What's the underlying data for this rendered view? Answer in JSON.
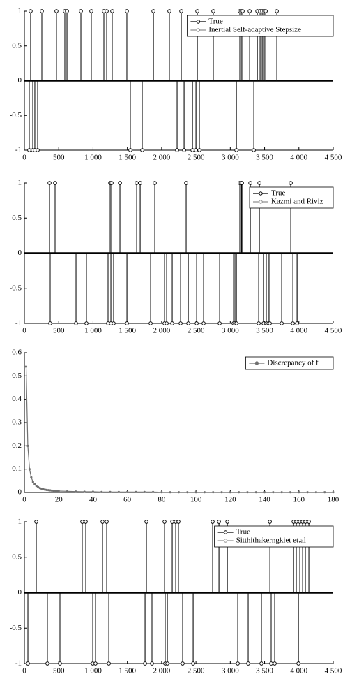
{
  "chart_data": [
    {
      "type": "stem",
      "legend": "upper right",
      "x": [
        91,
        254,
        467,
        589,
        620,
        823,
        975,
        1158,
        1199,
        1280,
        1493,
        1880,
        2113,
        2286,
        2520,
        2753,
        3139,
        3160,
        3180,
        3282,
        3394,
        3434,
        3465,
        3495,
        3516,
        3678,
        71,
        122,
        152,
        193,
        1544,
        1717,
        2225,
        2327,
        2449,
        2500,
        2550,
        3089,
        3343
      ],
      "series": [
        {
          "name": "True",
          "color": "#000000",
          "values": [
            1,
            1,
            1,
            1,
            1,
            1,
            1,
            1,
            1,
            1,
            1,
            1,
            1,
            1,
            1,
            1,
            1,
            1,
            1,
            1,
            1,
            1,
            1,
            1,
            1,
            1,
            -1,
            -1,
            -1,
            -1,
            -1,
            -1,
            -1,
            -1,
            -1,
            -1,
            -1,
            -1,
            -1
          ]
        },
        {
          "name": "Inertial Self-adaptive Stepsize",
          "color": "#909090",
          "values": [
            1,
            1,
            1,
            1,
            1,
            1,
            1,
            1,
            1,
            1,
            1,
            1,
            1,
            1,
            1,
            1,
            1,
            1,
            1,
            1,
            1,
            1,
            1,
            1,
            1,
            1,
            -1,
            -1,
            -1,
            -1,
            -1,
            -1,
            -1,
            -1,
            -1,
            -1,
            -1,
            -1,
            -1
          ]
        }
      ],
      "xlim": [
        0,
        4500
      ],
      "xticks": [
        0,
        500,
        {
          "value": 1000,
          "label": "1 000"
        },
        {
          "value": 1500,
          "label": "1 500"
        },
        {
          "value": 2000,
          "label": "2 000"
        },
        {
          "value": 2500,
          "label": "2 500"
        },
        {
          "value": 3000,
          "label": "3 000"
        },
        {
          "value": 3500,
          "label": "3 500"
        },
        {
          "value": 4000,
          "label": "4 000"
        },
        {
          "value": 4500,
          "label": "4 500"
        }
      ],
      "ylim": [
        -1,
        1
      ],
      "yticks": [
        -1,
        -0.5,
        0,
        0.5,
        1
      ]
    },
    {
      "type": "stem",
      "legend": "upper right",
      "x": [
        366,
        447,
        1250,
        1270,
        1392,
        1636,
        1687,
        1900,
        2357,
        3139,
        3160,
        3170,
        3292,
        3424,
        3881,
        376,
        752,
        904,
        1219,
        1260,
        1300,
        1494,
        1839,
        2042,
        2073,
        2154,
        2276,
        2388,
        2510,
        2611,
        2845,
        3048,
        3068,
        3089,
        3414,
        3485,
        3525,
        3556,
        3576,
        3749,
        3912,
        3973
      ],
      "series": [
        {
          "name": "True",
          "color": "#000000",
          "values": [
            1,
            1,
            1,
            1,
            1,
            1,
            1,
            1,
            1,
            1,
            1,
            1,
            1,
            1,
            1,
            -1,
            -1,
            -1,
            -1,
            -1,
            -1,
            -1,
            -1,
            -1,
            -1,
            -1,
            -1,
            -1,
            -1,
            -1,
            -1,
            -1,
            -1,
            -1,
            -1,
            -1,
            -1,
            -1,
            -1,
            -1,
            -1,
            -1
          ]
        },
        {
          "name": "Kazmi and Riviz",
          "color": "#909090",
          "values": [
            1,
            1,
            1,
            1,
            1,
            1,
            1,
            1,
            1,
            1,
            1,
            1,
            1,
            1,
            1,
            -1,
            -1,
            -1,
            -1,
            -1,
            -1,
            -1,
            -1,
            -1,
            -1,
            -1,
            -1,
            -1,
            -1,
            -1,
            -1,
            -1,
            -1,
            -1,
            -1,
            -1,
            -1,
            -1,
            -1,
            -1,
            -1,
            -1
          ]
        }
      ],
      "xlim": [
        0,
        4500
      ],
      "xticks": [
        0,
        500,
        {
          "value": 1000,
          "label": "1 000"
        },
        {
          "value": 1500,
          "label": "1 500"
        },
        {
          "value": 2000,
          "label": "2 000"
        },
        {
          "value": 2500,
          "label": "2 500"
        },
        {
          "value": 3000,
          "label": "3 000"
        },
        {
          "value": 3500,
          "label": "3 500"
        },
        {
          "value": 4000,
          "label": "4 000"
        },
        {
          "value": 4500,
          "label": "4 500"
        }
      ],
      "ylim": [
        -1,
        1
      ],
      "yticks": [
        -1,
        -0.5,
        0,
        0.5,
        1
      ]
    },
    {
      "type": "line",
      "legend": "upper right",
      "x": [
        1,
        2,
        3,
        4,
        5,
        6,
        7,
        8,
        9,
        10,
        11,
        12,
        13,
        14,
        15,
        16,
        17,
        18,
        19,
        20,
        25,
        30,
        35,
        40,
        45,
        50,
        55,
        60,
        65,
        70,
        75,
        80,
        85,
        90,
        95,
        100,
        105,
        110,
        115,
        120,
        125,
        130,
        135,
        140,
        145,
        150,
        155,
        160,
        165,
        170,
        175,
        180
      ],
      "series": [
        {
          "name": "Discrepancy of f",
          "color": "#707070",
          "values": [
            0.54,
            0.2,
            0.1,
            0.065,
            0.045,
            0.035,
            0.028,
            0.023,
            0.019,
            0.016,
            0.014,
            0.012,
            0.011,
            0.01,
            0.009,
            0.008,
            0.007,
            0.007,
            0.006,
            0.006,
            0.005,
            0.004,
            0.003,
            0.003,
            0.002,
            0.002,
            0.002,
            0.002,
            0.002,
            0.002,
            0.002,
            0.001,
            0.001,
            0.001,
            0.001,
            0.001,
            0.001,
            0.001,
            0.001,
            0.001,
            0.001,
            0.001,
            0.001,
            0.001,
            0.001,
            0.001,
            0.001,
            0.001,
            0.001,
            0.001,
            0.001,
            0.001
          ]
        }
      ],
      "xlim": [
        0,
        180
      ],
      "xticks": [
        0,
        20,
        40,
        60,
        80,
        100,
        120,
        140,
        160,
        180
      ],
      "ylim": [
        0,
        0.6
      ],
      "yticks": [
        0,
        0.1,
        0.2,
        0.3,
        0.4,
        0.5,
        0.6
      ]
    },
    {
      "type": "stem",
      "legend": "upper right",
      "x": [
        173,
        843,
        894,
        1138,
        1199,
        1778,
        2042,
        2154,
        2205,
        2245,
        2743,
        2835,
        2957,
        3577,
        3922,
        3962,
        4013,
        4054,
        4094,
        4145,
        51,
        335,
        518,
        996,
        1036,
        1230,
        1758,
        1859,
        2052,
        2083,
        2306,
        2459,
        3109,
        3261,
        3454,
        3596,
        3647,
        3993
      ],
      "series": [
        {
          "name": "True",
          "color": "#000000",
          "values": [
            1,
            1,
            1,
            1,
            1,
            1,
            1,
            1,
            1,
            1,
            1,
            1,
            1,
            1,
            1,
            1,
            1,
            1,
            1,
            1,
            -1,
            -1,
            -1,
            -1,
            -1,
            -1,
            -1,
            -1,
            -1,
            -1,
            -1,
            -1,
            -1,
            -1,
            -1,
            -1,
            -1,
            -1
          ]
        },
        {
          "name": "Sitthithakerngkiet et.al",
          "color": "#909090",
          "values": [
            1,
            1,
            1,
            1,
            1,
            1,
            1,
            1,
            1,
            1,
            1,
            1,
            1,
            1,
            1,
            1,
            1,
            1,
            1,
            1,
            -1,
            -1,
            -1,
            -1,
            -1,
            -1,
            -1,
            -1,
            -1,
            -1,
            -1,
            -1,
            -1,
            -1,
            -1,
            -1,
            -1,
            -1
          ]
        }
      ],
      "xlim": [
        0,
        4500
      ],
      "xticks": [
        0,
        500,
        {
          "value": 1000,
          "label": "1 000"
        },
        {
          "value": 1500,
          "label": "1 500"
        },
        {
          "value": 2000,
          "label": "2 000"
        },
        {
          "value": 2500,
          "label": "2 500"
        },
        {
          "value": 3000,
          "label": "3 000"
        },
        {
          "value": 3500,
          "label": "3 500"
        },
        {
          "value": 4000,
          "label": "4 000"
        },
        {
          "value": 4500,
          "label": "4 500"
        }
      ],
      "ylim": [
        -1,
        1
      ],
      "yticks": [
        -1,
        -0.5,
        0,
        0.5,
        1
      ]
    }
  ]
}
